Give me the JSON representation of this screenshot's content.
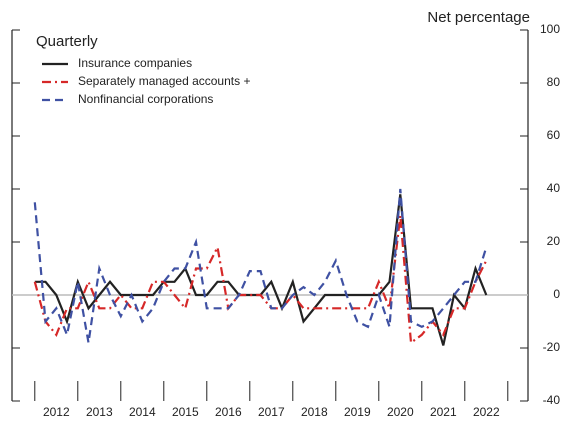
{
  "chart_data": {
    "type": "line",
    "title": "Quarterly",
    "y_axis_label": "Net percentage",
    "x": [
      2012,
      2012.25,
      2012.5,
      2012.75,
      2013,
      2013.25,
      2013.5,
      2013.75,
      2014,
      2014.25,
      2014.5,
      2014.75,
      2015,
      2015.25,
      2015.5,
      2015.75,
      2016,
      2016.25,
      2016.5,
      2016.75,
      2017,
      2017.25,
      2017.5,
      2017.75,
      2018,
      2018.25,
      2018.5,
      2018.75,
      2019,
      2019.25,
      2019.5,
      2019.75,
      2020,
      2020.25,
      2020.5,
      2020.75,
      2021,
      2021.25,
      2021.5,
      2021.75,
      2022,
      2022.25,
      2022.5
    ],
    "series": [
      {
        "name": "Insurance companies",
        "color": "#222222",
        "dash": "solid",
        "values": [
          5,
          5,
          0,
          -10,
          5,
          -5,
          0,
          5,
          0,
          0,
          0,
          0,
          5,
          5,
          10,
          0,
          0,
          5,
          5,
          0,
          0,
          0,
          5,
          -5,
          5,
          -10,
          -5,
          0,
          0,
          0,
          0,
          0,
          0,
          5,
          38,
          -5,
          -5,
          -5,
          -19,
          0,
          -5,
          10,
          0
        ]
      },
      {
        "name": "Separately managed accounts +",
        "color": "#d62828",
        "dash": "dashdot",
        "values": [
          5,
          -10,
          -15,
          -5,
          -5,
          5,
          -5,
          -5,
          0,
          -5,
          -5,
          5,
          5,
          0,
          -5,
          10,
          10,
          18,
          -5,
          0,
          0,
          0,
          -5,
          -5,
          0,
          -5,
          -5,
          -5,
          -5,
          -5,
          -5,
          -5,
          5,
          -5,
          30,
          -18,
          -15,
          -10,
          -15,
          -5,
          -5,
          5,
          13
        ]
      },
      {
        "name": "Nonfinancial corporations",
        "color": "#3f51a3",
        "dash": "dashed",
        "values": [
          35,
          -10,
          -5,
          -15,
          5,
          -18,
          10,
          0,
          -8,
          0,
          -10,
          -5,
          5,
          10,
          10,
          20,
          -5,
          -5,
          -5,
          0,
          9,
          9,
          -5,
          -5,
          0,
          3,
          0,
          5,
          13,
          0,
          -10,
          -12,
          0,
          -12,
          40,
          -10,
          -12,
          -10,
          -5,
          0,
          5,
          5,
          18
        ]
      }
    ],
    "xlim": [
      2011.47,
      2023.47
    ],
    "xtick_marks": [
      2012,
      2013,
      2014,
      2015,
      2016,
      2017,
      2018,
      2019,
      2020,
      2021,
      2022,
      2023
    ],
    "xlabels": [
      {
        "value": 2012.5,
        "label": "2012"
      },
      {
        "value": 2013.5,
        "label": "2013"
      },
      {
        "value": 2014.5,
        "label": "2014"
      },
      {
        "value": 2015.5,
        "label": "2015"
      },
      {
        "value": 2016.5,
        "label": "2016"
      },
      {
        "value": 2017.5,
        "label": "2017"
      },
      {
        "value": 2018.5,
        "label": "2018"
      },
      {
        "value": 2019.5,
        "label": "2019"
      },
      {
        "value": 2020.5,
        "label": "2020"
      },
      {
        "value": 2021.5,
        "label": "2021"
      },
      {
        "value": 2022.5,
        "label": "2022"
      }
    ],
    "ylim": [
      -40,
      100
    ],
    "yticks": [
      -40,
      -20,
      0,
      20,
      40,
      60,
      80,
      100
    ],
    "zero_line": true,
    "legend": "upper left"
  }
}
